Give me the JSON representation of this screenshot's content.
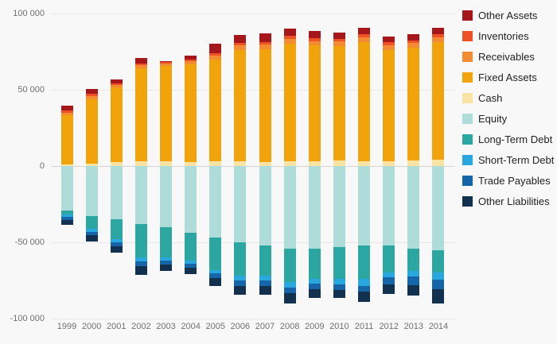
{
  "chart_data": {
    "type": "bar",
    "stacked": true,
    "title": "",
    "xlabel": "",
    "ylabel": "",
    "legend_position": "right",
    "grid": true,
    "ylim": [
      -100000,
      100000
    ],
    "categories": [
      "1999",
      "2000",
      "2001",
      "2002",
      "2003",
      "2004",
      "2005",
      "2006",
      "2007",
      "2008",
      "2009",
      "2010",
      "2011",
      "2012",
      "2013",
      "2014"
    ],
    "yticks": [
      {
        "value": 100000,
        "label": "100 000"
      },
      {
        "value": 50000,
        "label": "50 000"
      },
      {
        "value": 0,
        "label": "0"
      },
      {
        "value": -50000,
        "label": "-50 000"
      },
      {
        "value": -100000,
        "label": "-100 000"
      }
    ],
    "series": [
      {
        "name": "Other Assets",
        "color": "#a6171c",
        "values": [
          3500,
          3500,
          2500,
          3500,
          1000,
          2500,
          6000,
          5000,
          5500,
          5000,
          4500,
          4000,
          4000,
          4000,
          4000,
          4000
        ]
      },
      {
        "name": "Inventories",
        "color": "#ee5126",
        "values": [
          1200,
          1200,
          1000,
          1200,
          700,
          1000,
          1500,
          1800,
          1800,
          2000,
          1800,
          1800,
          2000,
          1800,
          1800,
          2000
        ]
      },
      {
        "name": "Receivables",
        "color": "#f28b31",
        "values": [
          1800,
          2200,
          1800,
          2200,
          1800,
          2200,
          2500,
          3000,
          3000,
          3200,
          3000,
          3200,
          3500,
          3200,
          3200,
          3500
        ]
      },
      {
        "name": "Fixed Assets",
        "color": "#f0a30a",
        "values": [
          32000,
          42000,
          49000,
          61000,
          62500,
          64000,
          67000,
          73000,
          74000,
          77000,
          76000,
          75000,
          78000,
          73000,
          74000,
          77000
        ]
      },
      {
        "name": "Cash",
        "color": "#f9e3a3",
        "values": [
          1200,
          1800,
          2500,
          3000,
          3000,
          2500,
          3000,
          3000,
          2500,
          3000,
          3000,
          3500,
          3000,
          3000,
          3500,
          4000
        ]
      },
      {
        "name": "Equity",
        "color": "#aedcd9",
        "values": [
          -29000,
          -33000,
          -35000,
          -38000,
          -40000,
          -44000,
          -47000,
          -50000,
          -52000,
          -54000,
          -54000,
          -53000,
          -52000,
          -52000,
          -54000,
          -55000
        ]
      },
      {
        "name": "Long-Term Debt",
        "color": "#2ba6a0",
        "values": [
          -3000,
          -8000,
          -13000,
          -22000,
          -20000,
          -18000,
          -21000,
          -22000,
          -20000,
          -22000,
          -20000,
          -21000,
          -22000,
          -18000,
          -15000,
          -15000
        ]
      },
      {
        "name": "Short-Term Debt",
        "color": "#29a8e0",
        "values": [
          -1500,
          -2000,
          -2000,
          -2500,
          -2000,
          -2000,
          -2500,
          -3000,
          -3000,
          -3500,
          -3000,
          -3500,
          -4500,
          -3000,
          -3500,
          -4500
        ]
      },
      {
        "name": "Trade Payables",
        "color": "#1565a8",
        "values": [
          -2000,
          -2500,
          -2500,
          -3000,
          -2500,
          -2500,
          -3000,
          -3500,
          -3500,
          -4000,
          -3500,
          -3500,
          -4000,
          -4500,
          -5500,
          -6000
        ]
      },
      {
        "name": "Other Liabilities",
        "color": "#12314e",
        "values": [
          -3000,
          -4000,
          -4500,
          -6000,
          -4500,
          -4500,
          -5000,
          -6000,
          -6000,
          -6500,
          -6000,
          -5500,
          -6500,
          -6500,
          -7000,
          -9500
        ]
      }
    ],
    "positive_stack_order": [
      "Cash",
      "Fixed Assets",
      "Receivables",
      "Inventories",
      "Other Assets"
    ],
    "negative_stack_order": [
      "Equity",
      "Long-Term Debt",
      "Short-Term Debt",
      "Trade Payables",
      "Other Liabilities"
    ]
  }
}
